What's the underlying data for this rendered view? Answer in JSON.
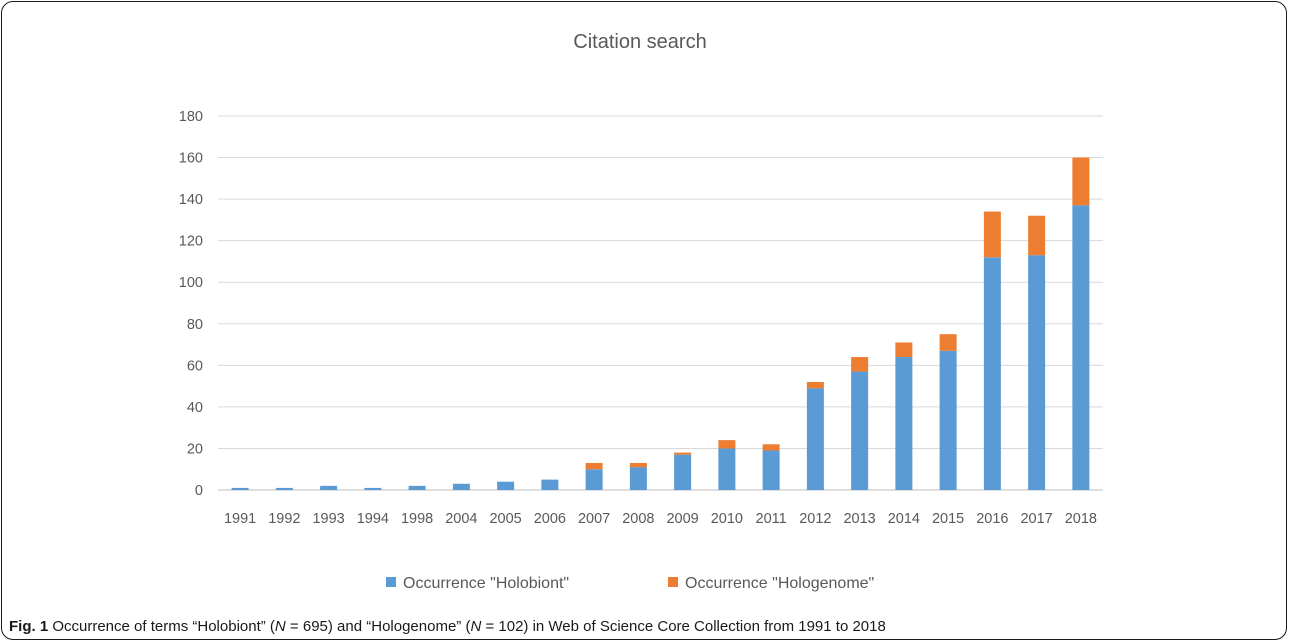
{
  "chart_data": {
    "type": "bar",
    "stacked": true,
    "title": "Citation search",
    "xlabel": "",
    "ylabel": "",
    "ylim": [
      0,
      180
    ],
    "yticks": [
      0,
      20,
      40,
      60,
      80,
      100,
      120,
      140,
      160,
      180
    ],
    "grid": true,
    "legend_position": "bottom",
    "categories": [
      "1991",
      "1992",
      "1993",
      "1994",
      "1998",
      "2004",
      "2005",
      "2006",
      "2007",
      "2008",
      "2009",
      "2010",
      "2011",
      "2012",
      "2013",
      "2014",
      "2015",
      "2016",
      "2017",
      "2018"
    ],
    "series": [
      {
        "name": "Occurrence \"Holobiont\"",
        "color": "#5b9bd5",
        "values": [
          1,
          1,
          2,
          1,
          2,
          3,
          4,
          5,
          10,
          11,
          17,
          20,
          19,
          49,
          57,
          64,
          67,
          112,
          113,
          137
        ]
      },
      {
        "name": "Occurrence \"Hologenome\"",
        "color": "#ed7d31",
        "values": [
          0,
          0,
          0,
          0,
          0,
          0,
          0,
          0,
          3,
          2,
          1,
          4,
          3,
          3,
          7,
          7,
          8,
          22,
          19,
          23
        ]
      }
    ]
  },
  "caption": {
    "label": "Fig. 1",
    "parts": [
      " Occurrence of terms “Holobiont” (",
      "N",
      " = 695) and “Hologenome” (",
      "N",
      " = 102) in Web of Science Core Collection from 1991 to 2018"
    ]
  }
}
